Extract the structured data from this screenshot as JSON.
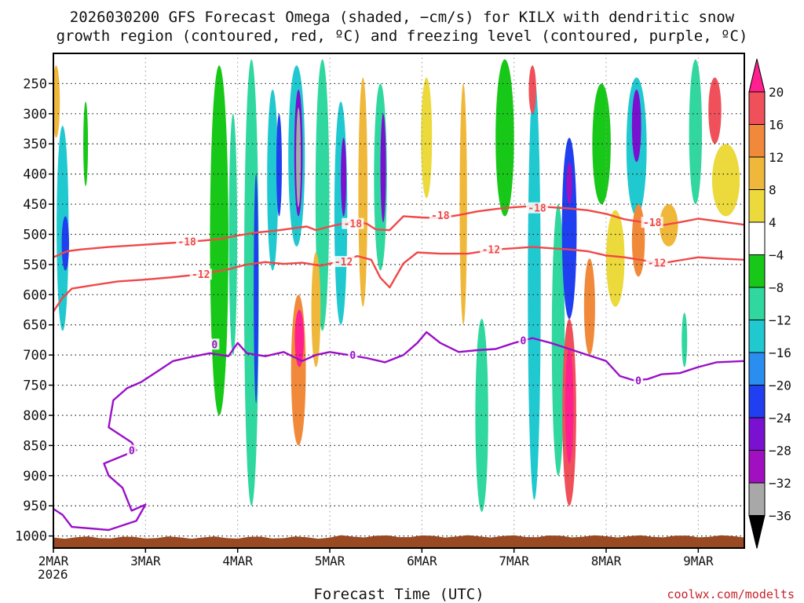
{
  "chart_data": {
    "type": "heatmap",
    "title_line1": "2026030200 GFS Forecast Omega (shaded, −cm/s) for KILX with dendritic snow",
    "title_line2": "growth region (contoured, red, ºC) and freezing level (contoured, purple, ºC)",
    "xlabel": "Forecast Time (UTC)",
    "credit": "coolwx.com/modelts",
    "x_ticks": [
      {
        "day": 2,
        "label": "2MAR"
      },
      {
        "day": 3,
        "label": "3MAR"
      },
      {
        "day": 4,
        "label": "4MAR"
      },
      {
        "day": 5,
        "label": "5MAR"
      },
      {
        "day": 6,
        "label": "6MAR"
      },
      {
        "day": 7,
        "label": "7MAR"
      },
      {
        "day": 8,
        "label": "8MAR"
      },
      {
        "day": 9,
        "label": "9MAR"
      }
    ],
    "year_label": "2026",
    "xlim": [
      2.0,
      9.5
    ],
    "y_ticks": [
      250,
      300,
      350,
      400,
      450,
      500,
      550,
      600,
      650,
      700,
      750,
      800,
      850,
      900,
      950,
      1000
    ],
    "ylim": [
      200,
      1020
    ],
    "colorbar": {
      "levels": [
        "20",
        "16",
        "12",
        "8",
        "4",
        "−4",
        "−8",
        "−12",
        "−16",
        "−20",
        "−24",
        "−28",
        "−32",
        "−36"
      ],
      "colors": [
        "#ff1f8f",
        "#f0505a",
        "#f08a3a",
        "#f0b83a",
        "#ecd93c",
        "#ffffff",
        "#18c818",
        "#30d8a0",
        "#20c8d0",
        "#2a8ef0",
        "#1f3ff0",
        "#7a10d0",
        "#a010c0",
        "#a8a8a8",
        "#000000"
      ]
    },
    "contours": [
      {
        "name": "dendritic-minus18",
        "label": "-18",
        "color": "#f04848",
        "points": [
          [
            2.0,
            538
          ],
          [
            2.15,
            528
          ],
          [
            2.3,
            525
          ],
          [
            2.6,
            521
          ],
          [
            2.9,
            518
          ],
          [
            3.2,
            515
          ],
          [
            3.5,
            512
          ],
          [
            3.8,
            508
          ],
          [
            4.0,
            502
          ],
          [
            4.2,
            497
          ],
          [
            4.4,
            494
          ],
          [
            4.6,
            490
          ],
          [
            4.75,
            487
          ],
          [
            4.85,
            493
          ],
          [
            5.0,
            487
          ],
          [
            5.2,
            480
          ],
          [
            5.4,
            482
          ],
          [
            5.5,
            492
          ],
          [
            5.65,
            493
          ],
          [
            5.8,
            470
          ],
          [
            6.0,
            472
          ],
          [
            6.2,
            473
          ],
          [
            6.4,
            468
          ],
          [
            6.6,
            462
          ],
          [
            6.8,
            458
          ],
          [
            7.0,
            455
          ],
          [
            7.2,
            453
          ],
          [
            7.4,
            455
          ],
          [
            7.6,
            457
          ],
          [
            7.8,
            460
          ],
          [
            8.0,
            466
          ],
          [
            8.2,
            475
          ],
          [
            8.4,
            480
          ],
          [
            8.6,
            485
          ],
          [
            8.8,
            480
          ],
          [
            9.0,
            474
          ],
          [
            9.2,
            478
          ],
          [
            9.5,
            484
          ]
        ],
        "label_at": [
          [
            3.45,
            512
          ],
          [
            5.25,
            482
          ],
          [
            6.2,
            468
          ],
          [
            7.25,
            456
          ],
          [
            8.5,
            480
          ]
        ]
      },
      {
        "name": "dendritic-minus12",
        "label": "-12",
        "color": "#f04848",
        "points": [
          [
            2.0,
            628
          ],
          [
            2.1,
            605
          ],
          [
            2.2,
            590
          ],
          [
            2.4,
            585
          ],
          [
            2.7,
            578
          ],
          [
            3.0,
            575
          ],
          [
            3.3,
            571
          ],
          [
            3.6,
            566
          ],
          [
            3.9,
            558
          ],
          [
            4.1,
            550
          ],
          [
            4.3,
            546
          ],
          [
            4.5,
            549
          ],
          [
            4.7,
            547
          ],
          [
            4.9,
            552
          ],
          [
            5.1,
            545
          ],
          [
            5.3,
            536
          ],
          [
            5.45,
            542
          ],
          [
            5.55,
            572
          ],
          [
            5.65,
            588
          ],
          [
            5.8,
            548
          ],
          [
            5.95,
            530
          ],
          [
            6.2,
            532
          ],
          [
            6.5,
            532
          ],
          [
            6.8,
            525
          ],
          [
            7.0,
            523
          ],
          [
            7.2,
            521
          ],
          [
            7.4,
            523
          ],
          [
            7.6,
            525
          ],
          [
            7.8,
            528
          ],
          [
            8.0,
            535
          ],
          [
            8.2,
            538
          ],
          [
            8.4,
            543
          ],
          [
            8.6,
            548
          ],
          [
            8.8,
            543
          ],
          [
            9.0,
            538
          ],
          [
            9.2,
            540
          ],
          [
            9.5,
            542
          ]
        ],
        "label_at": [
          [
            3.6,
            566
          ],
          [
            5.15,
            545
          ],
          [
            6.75,
            525
          ],
          [
            8.55,
            547
          ]
        ]
      },
      {
        "name": "freezing-level-0",
        "label": "0",
        "color": "#9a10c8",
        "points": [
          [
            2.0,
            955
          ],
          [
            2.1,
            965
          ],
          [
            2.2,
            985
          ],
          [
            2.6,
            990
          ],
          [
            2.9,
            975
          ],
          [
            3.0,
            948
          ],
          [
            2.85,
            958
          ],
          [
            2.75,
            920
          ],
          [
            2.6,
            900
          ],
          [
            2.55,
            880
          ],
          [
            2.9,
            858
          ],
          [
            2.85,
            845
          ],
          [
            2.6,
            820
          ],
          [
            2.65,
            775
          ],
          [
            2.8,
            755
          ],
          [
            2.95,
            745
          ],
          [
            3.1,
            730
          ],
          [
            3.3,
            710
          ],
          [
            3.5,
            703
          ],
          [
            3.7,
            697
          ],
          [
            3.9,
            702
          ],
          [
            4.0,
            680
          ],
          [
            4.1,
            697
          ],
          [
            4.3,
            702
          ],
          [
            4.5,
            695
          ],
          [
            4.7,
            710
          ],
          [
            4.85,
            700
          ],
          [
            5.0,
            695
          ],
          [
            5.2,
            700
          ],
          [
            5.4,
            705
          ],
          [
            5.6,
            712
          ],
          [
            5.8,
            700
          ],
          [
            5.95,
            680
          ],
          [
            6.05,
            662
          ],
          [
            6.2,
            680
          ],
          [
            6.4,
            695
          ],
          [
            6.6,
            692
          ],
          [
            6.8,
            690
          ],
          [
            7.0,
            680
          ],
          [
            7.2,
            672
          ],
          [
            7.4,
            680
          ],
          [
            7.6,
            690
          ],
          [
            7.8,
            700
          ],
          [
            8.0,
            710
          ],
          [
            8.15,
            735
          ],
          [
            8.3,
            742
          ],
          [
            8.45,
            740
          ],
          [
            8.6,
            732
          ],
          [
            8.8,
            730
          ],
          [
            9.0,
            720
          ],
          [
            9.2,
            712
          ],
          [
            9.5,
            710
          ]
        ],
        "label_at": [
          [
            2.85,
            858
          ],
          [
            3.75,
            682
          ],
          [
            5.25,
            700
          ],
          [
            7.1,
            676
          ],
          [
            8.35,
            742
          ]
        ]
      }
    ],
    "cells": [
      {
        "x": 2.1,
        "y0": 320,
        "y1": 660,
        "w": 0.13,
        "level": "-16"
      },
      {
        "x": 2.13,
        "y0": 470,
        "y1": 560,
        "w": 0.08,
        "level": "-24"
      },
      {
        "x": 2.03,
        "y0": 220,
        "y1": 340,
        "w": 0.08,
        "level": "8"
      },
      {
        "x": 2.35,
        "y0": 280,
        "y1": 420,
        "w": 0.05,
        "level": "-8"
      },
      {
        "x": 3.8,
        "y0": 220,
        "y1": 800,
        "w": 0.2,
        "level": "-8"
      },
      {
        "x": 3.95,
        "y0": 300,
        "y1": 700,
        "w": 0.09,
        "level": "-12"
      },
      {
        "x": 4.15,
        "y0": 210,
        "y1": 950,
        "w": 0.16,
        "level": "-12"
      },
      {
        "x": 4.2,
        "y0": 400,
        "y1": 780,
        "w": 0.05,
        "level": "-24"
      },
      {
        "x": 4.38,
        "y0": 260,
        "y1": 560,
        "w": 0.12,
        "level": "-16"
      },
      {
        "x": 4.45,
        "y0": 300,
        "y1": 470,
        "w": 0.06,
        "level": "-24"
      },
      {
        "x": 4.64,
        "y0": 220,
        "y1": 520,
        "w": 0.18,
        "level": "-16"
      },
      {
        "x": 4.66,
        "y0": 260,
        "y1": 470,
        "w": 0.09,
        "level": "-28"
      },
      {
        "x": 4.66,
        "y0": 290,
        "y1": 455,
        "w": 0.05,
        "level": "-36"
      },
      {
        "x": 4.66,
        "y0": 600,
        "y1": 850,
        "w": 0.16,
        "level": "12"
      },
      {
        "x": 4.67,
        "y0": 625,
        "y1": 720,
        "w": 0.1,
        "level": "20"
      },
      {
        "x": 4.92,
        "y0": 210,
        "y1": 660,
        "w": 0.15,
        "level": "-12"
      },
      {
        "x": 5.12,
        "y0": 280,
        "y1": 650,
        "w": 0.14,
        "level": "-16"
      },
      {
        "x": 5.15,
        "y0": 340,
        "y1": 470,
        "w": 0.06,
        "level": "-28"
      },
      {
        "x": 4.85,
        "y0": 530,
        "y1": 720,
        "w": 0.1,
        "level": "8"
      },
      {
        "x": 5.36,
        "y0": 240,
        "y1": 620,
        "w": 0.1,
        "level": "8"
      },
      {
        "x": 5.55,
        "y0": 250,
        "y1": 560,
        "w": 0.14,
        "level": "-12"
      },
      {
        "x": 5.58,
        "y0": 300,
        "y1": 480,
        "w": 0.06,
        "level": "-28"
      },
      {
        "x": 6.05,
        "y0": 240,
        "y1": 440,
        "w": 0.12,
        "level": "4"
      },
      {
        "x": 6.45,
        "y0": 250,
        "y1": 650,
        "w": 0.08,
        "level": "8"
      },
      {
        "x": 6.65,
        "y0": 640,
        "y1": 960,
        "w": 0.14,
        "level": "-12"
      },
      {
        "x": 6.9,
        "y0": 210,
        "y1": 470,
        "w": 0.2,
        "level": "-8"
      },
      {
        "x": 7.22,
        "y0": 240,
        "y1": 940,
        "w": 0.14,
        "level": "-16"
      },
      {
        "x": 7.2,
        "y0": 220,
        "y1": 300,
        "w": 0.08,
        "level": "16"
      },
      {
        "x": 7.48,
        "y0": 450,
        "y1": 900,
        "w": 0.14,
        "level": "-12"
      },
      {
        "x": 7.6,
        "y0": 340,
        "y1": 640,
        "w": 0.16,
        "level": "-24"
      },
      {
        "x": 7.6,
        "y0": 380,
        "y1": 450,
        "w": 0.06,
        "level": "-32"
      },
      {
        "x": 7.6,
        "y0": 640,
        "y1": 950,
        "w": 0.15,
        "level": "16"
      },
      {
        "x": 7.6,
        "y0": 690,
        "y1": 880,
        "w": 0.09,
        "level": "20"
      },
      {
        "x": 7.82,
        "y0": 540,
        "y1": 700,
        "w": 0.12,
        "level": "12"
      },
      {
        "x": 7.95,
        "y0": 250,
        "y1": 450,
        "w": 0.2,
        "level": "-8"
      },
      {
        "x": 8.1,
        "y0": 460,
        "y1": 620,
        "w": 0.2,
        "level": "4"
      },
      {
        "x": 8.33,
        "y0": 240,
        "y1": 470,
        "w": 0.22,
        "level": "-16"
      },
      {
        "x": 8.33,
        "y0": 260,
        "y1": 380,
        "w": 0.1,
        "level": "-28"
      },
      {
        "x": 8.35,
        "y0": 450,
        "y1": 570,
        "w": 0.14,
        "level": "12"
      },
      {
        "x": 8.68,
        "y0": 450,
        "y1": 520,
        "w": 0.2,
        "level": "8"
      },
      {
        "x": 8.85,
        "y0": 630,
        "y1": 720,
        "w": 0.06,
        "level": "-12"
      },
      {
        "x": 8.97,
        "y0": 210,
        "y1": 450,
        "w": 0.14,
        "level": "-12"
      },
      {
        "x": 9.18,
        "y0": 240,
        "y1": 350,
        "w": 0.14,
        "level": "16"
      },
      {
        "x": 9.3,
        "y0": 350,
        "y1": 470,
        "w": 0.3,
        "level": "4"
      }
    ],
    "terrain": {
      "label": "ground",
      "top_mb": 1000,
      "color": "#9a4a22"
    }
  }
}
